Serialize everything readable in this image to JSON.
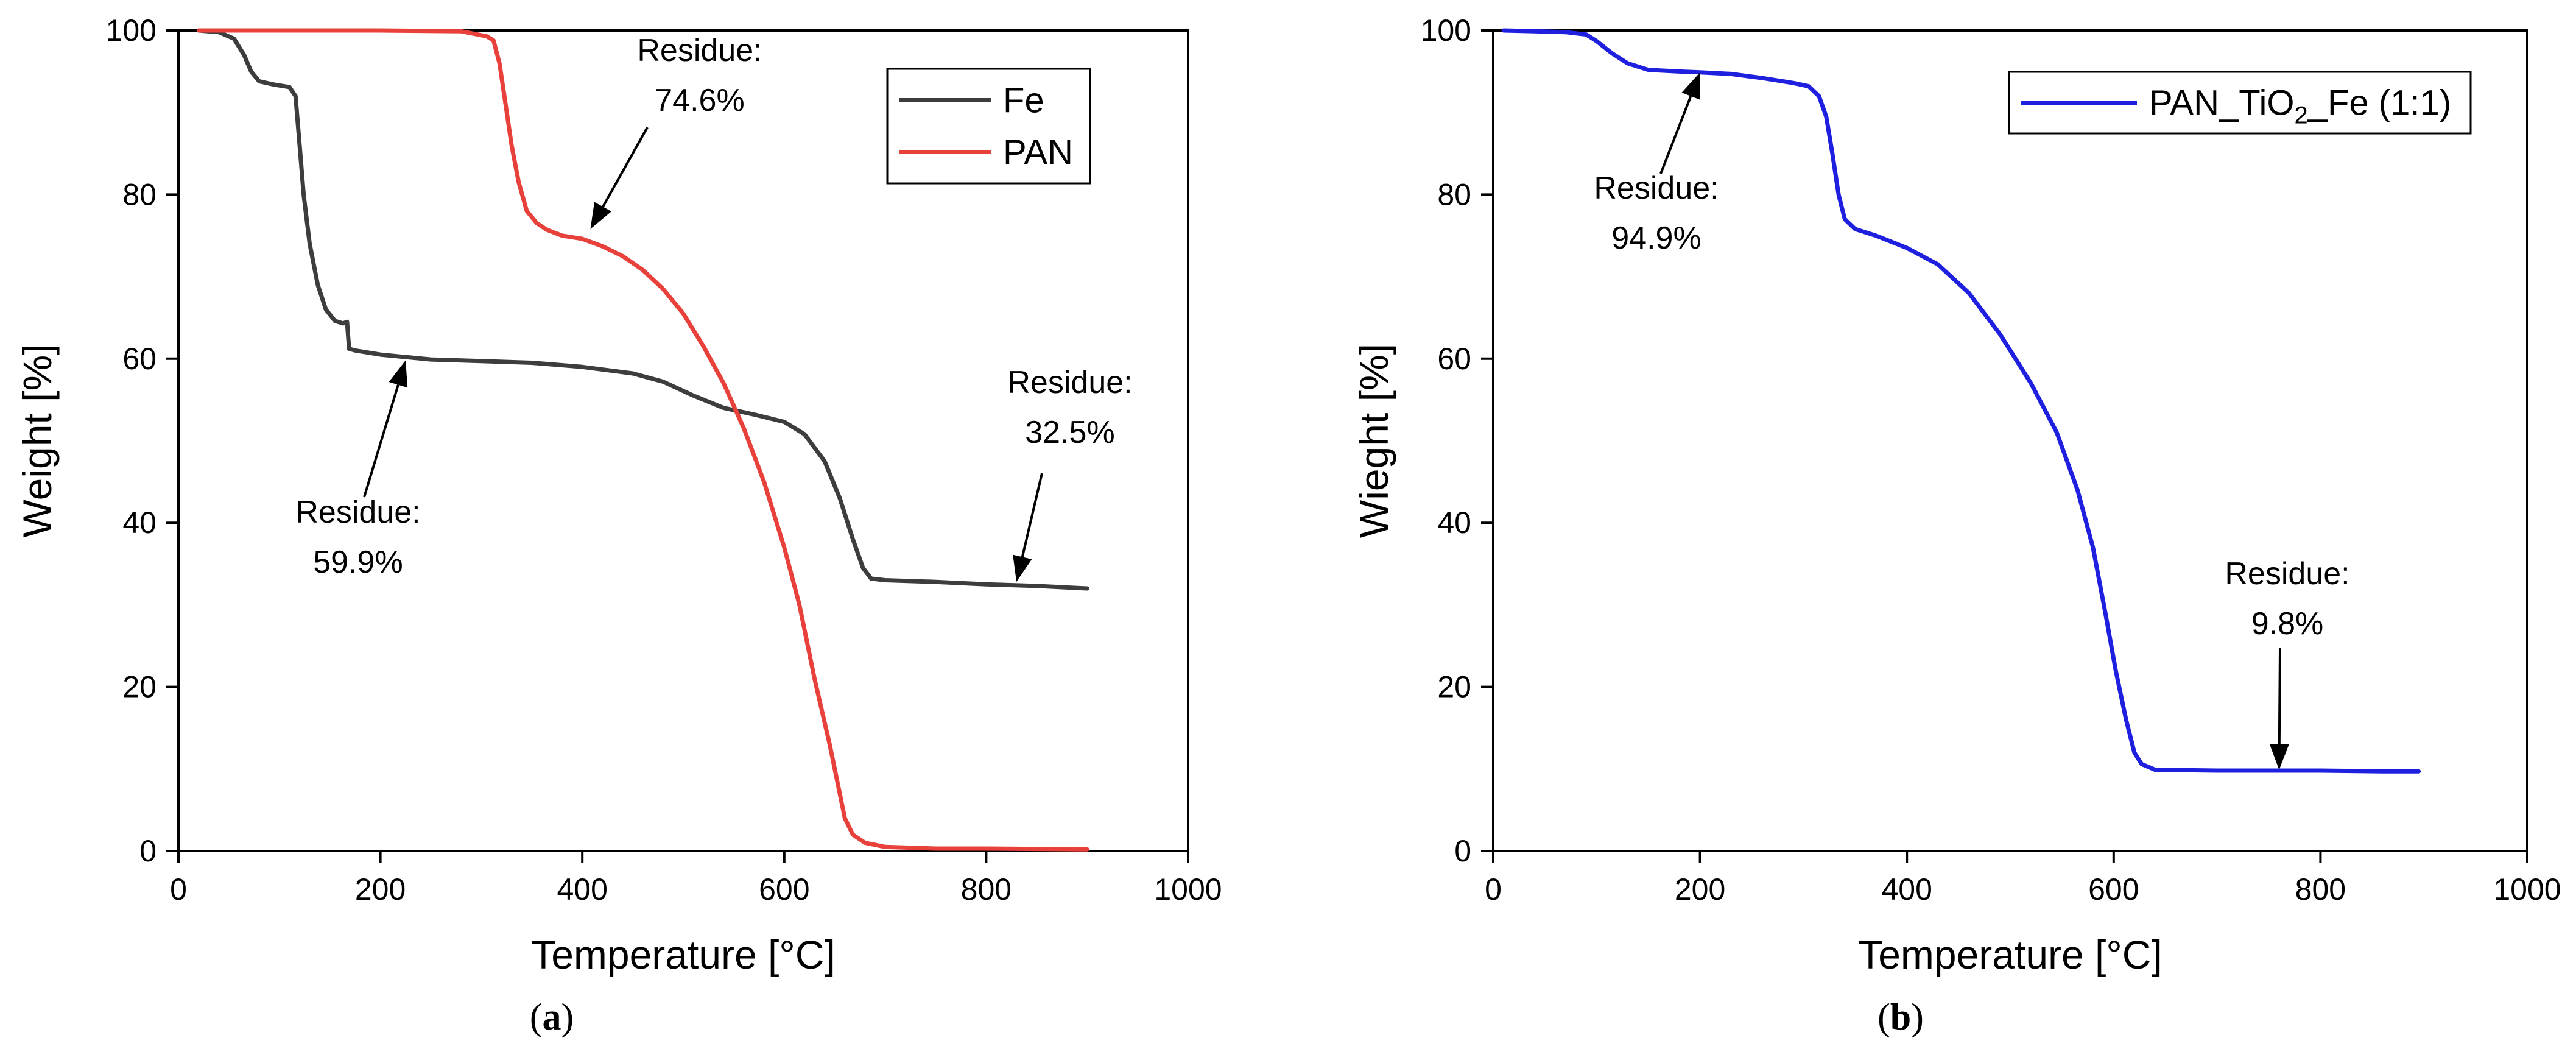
{
  "chart_data": [
    {
      "type": "line",
      "panel_label": {
        "open": "(",
        "letter": "a",
        "close": ")"
      },
      "title": "",
      "xlabel": "Temperature [°C]",
      "ylabel": "Weight [%]",
      "xlim": [
        0,
        1000
      ],
      "ylim": [
        0,
        100
      ],
      "xticks": [
        0,
        200,
        400,
        600,
        800,
        1000
      ],
      "yticks": [
        0,
        20,
        40,
        60,
        80,
        100
      ],
      "grid": false,
      "legend": {
        "position": "top-right"
      },
      "series": [
        {
          "name": "Fe",
          "color": "#3d3d3d",
          "points": [
            [
              20,
              100
            ],
            [
              40,
              99.8
            ],
            [
              55,
              99
            ],
            [
              65,
              97
            ],
            [
              72,
              95
            ],
            [
              80,
              93.8
            ],
            [
              95,
              93.4
            ],
            [
              110,
              93.1
            ],
            [
              116,
              92
            ],
            [
              120,
              86
            ],
            [
              124,
              80
            ],
            [
              130,
              74
            ],
            [
              138,
              69
            ],
            [
              146,
              66
            ],
            [
              155,
              64.6
            ],
            [
              163,
              64.3
            ],
            [
              167,
              64.5
            ],
            [
              169,
              61.2
            ],
            [
              175,
              61
            ],
            [
              200,
              60.5
            ],
            [
              250,
              59.9
            ],
            [
              300,
              59.7
            ],
            [
              350,
              59.5
            ],
            [
              400,
              59
            ],
            [
              450,
              58.2
            ],
            [
              480,
              57.2
            ],
            [
              510,
              55.5
            ],
            [
              540,
              54
            ],
            [
              570,
              53.2
            ],
            [
              600,
              52.3
            ],
            [
              620,
              50.8
            ],
            [
              640,
              47.5
            ],
            [
              655,
              43
            ],
            [
              668,
              38
            ],
            [
              678,
              34.5
            ],
            [
              686,
              33.2
            ],
            [
              700,
              33
            ],
            [
              750,
              32.8
            ],
            [
              800,
              32.5
            ],
            [
              850,
              32.3
            ],
            [
              900,
              32
            ]
          ]
        },
        {
          "name": "PAN",
          "color": "#e8403a",
          "points": [
            [
              20,
              100
            ],
            [
              100,
              100
            ],
            [
              200,
              100
            ],
            [
              280,
              99.9
            ],
            [
              305,
              99.3
            ],
            [
              312,
              98.8
            ],
            [
              318,
              96
            ],
            [
              324,
              91
            ],
            [
              330,
              86
            ],
            [
              337,
              81.5
            ],
            [
              345,
              78
            ],
            [
              355,
              76.5
            ],
            [
              365,
              75.7
            ],
            [
              380,
              75
            ],
            [
              400,
              74.6
            ],
            [
              420,
              73.7
            ],
            [
              440,
              72.5
            ],
            [
              460,
              70.8
            ],
            [
              480,
              68.5
            ],
            [
              500,
              65.5
            ],
            [
              520,
              61.5
            ],
            [
              540,
              57
            ],
            [
              560,
              51.5
            ],
            [
              580,
              45
            ],
            [
              600,
              37
            ],
            [
              615,
              30
            ],
            [
              630,
              21
            ],
            [
              645,
              13
            ],
            [
              655,
              7
            ],
            [
              660,
              4
            ],
            [
              668,
              2
            ],
            [
              680,
              1
            ],
            [
              700,
              0.5
            ],
            [
              750,
              0.3
            ],
            [
              800,
              0.3
            ],
            [
              900,
              0.2
            ]
          ]
        }
      ],
      "annotations": [
        {
          "lines": [
            "Residue:",
            "74.6%"
          ],
          "target": [
            408,
            75.8
          ]
        },
        {
          "lines": [
            "Residue:",
            "59.9%"
          ],
          "target": [
            225,
            59.8
          ]
        },
        {
          "lines": [
            "Residue:",
            "32.5%"
          ],
          "target": [
            830,
            32.8
          ]
        }
      ]
    },
    {
      "type": "line",
      "panel_label": {
        "open": "(",
        "letter": "b",
        "close": ")"
      },
      "title": "",
      "xlabel": "Temperature [°C]",
      "ylabel": "Wieght [%]",
      "xlim": [
        0,
        1000
      ],
      "ylim": [
        0,
        100
      ],
      "xticks": [
        0,
        200,
        400,
        600,
        800,
        1000
      ],
      "yticks": [
        0,
        20,
        40,
        60,
        80,
        100
      ],
      "grid": false,
      "legend": {
        "position": "top-right"
      },
      "series": [
        {
          "name": "PAN_TiO",
          "name_sub": "2",
          "name_suffix": "_Fe (1:1)",
          "color": "#1f1fe0",
          "points": [
            [
              10,
              100
            ],
            [
              40,
              99.9
            ],
            [
              70,
              99.8
            ],
            [
              90,
              99.5
            ],
            [
              100,
              98.7
            ],
            [
              115,
              97.2
            ],
            [
              130,
              96
            ],
            [
              150,
              95.2
            ],
            [
              180,
              95
            ],
            [
              200,
              94.9
            ],
            [
              230,
              94.7
            ],
            [
              260,
              94.2
            ],
            [
              290,
              93.6
            ],
            [
              305,
              93.2
            ],
            [
              315,
              92
            ],
            [
              322,
              89.5
            ],
            [
              328,
              85
            ],
            [
              334,
              80
            ],
            [
              340,
              77
            ],
            [
              350,
              75.8
            ],
            [
              370,
              75
            ],
            [
              400,
              73.5
            ],
            [
              430,
              71.5
            ],
            [
              460,
              68
            ],
            [
              490,
              63
            ],
            [
              520,
              57
            ],
            [
              545,
              51
            ],
            [
              565,
              44
            ],
            [
              580,
              37
            ],
            [
              592,
              29
            ],
            [
              602,
              22
            ],
            [
              612,
              16
            ],
            [
              620,
              12
            ],
            [
              627,
              10.6
            ],
            [
              640,
              9.9
            ],
            [
              700,
              9.8
            ],
            [
              760,
              9.8
            ],
            [
              800,
              9.8
            ],
            [
              860,
              9.7
            ],
            [
              895,
              9.7
            ]
          ]
        }
      ],
      "annotations": [
        {
          "lines": [
            "Residue:",
            "94.9%"
          ],
          "target": [
            200,
            94.9
          ]
        },
        {
          "lines": [
            "Residue:",
            "9.8%"
          ],
          "target": [
            760,
            9.9
          ]
        }
      ]
    }
  ]
}
